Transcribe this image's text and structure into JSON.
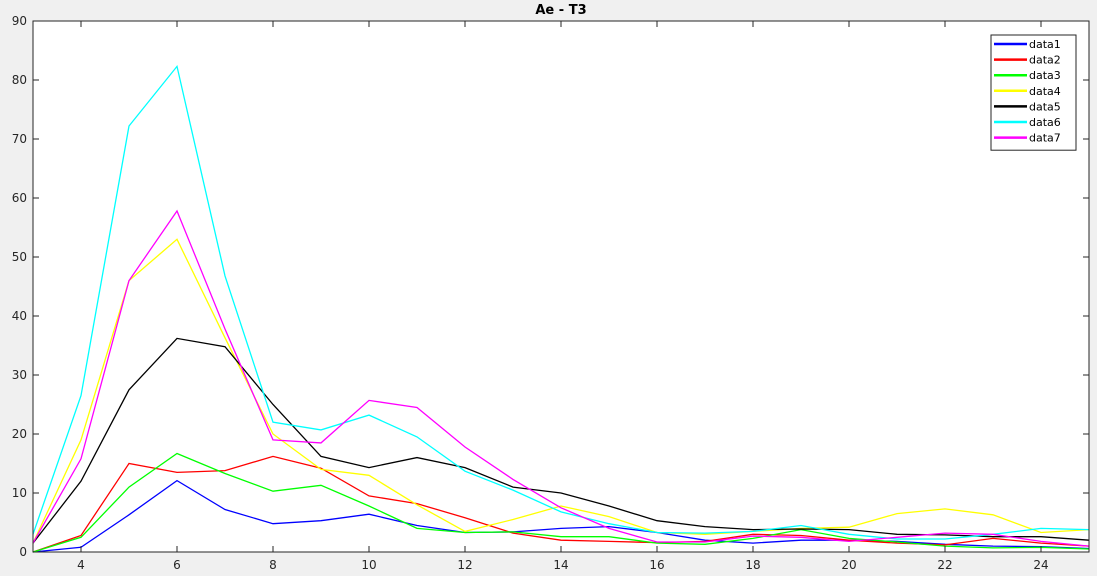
{
  "chart_data": {
    "type": "line",
    "title": "Ae - T3",
    "xlabel": "",
    "ylabel": "",
    "xlim": [
      3,
      25
    ],
    "ylim": [
      0,
      90
    ],
    "xticks": [
      4,
      6,
      8,
      10,
      12,
      14,
      16,
      18,
      20,
      22,
      24
    ],
    "yticks": [
      0,
      10,
      20,
      30,
      40,
      50,
      60,
      70,
      80,
      90
    ],
    "grid": false,
    "legend_position": "top-right",
    "x": [
      3,
      4,
      5,
      6,
      7,
      8,
      9,
      10,
      11,
      12,
      13,
      14,
      15,
      16,
      17,
      18,
      19,
      20,
      21,
      22,
      23,
      24,
      25
    ],
    "series": [
      {
        "name": "data1",
        "color": "#0000ff",
        "values": [
          0,
          0.8,
          6.3,
          12.1,
          7.2,
          4.8,
          5.3,
          6.4,
          4.5,
          3.3,
          3.4,
          4.0,
          4.3,
          3.3,
          2.0,
          1.5,
          2.0,
          2.0,
          1.8,
          1.3,
          1.0,
          0.9,
          0.6
        ]
      },
      {
        "name": "data2",
        "color": "#ff0000",
        "values": [
          0,
          2.8,
          15.0,
          13.5,
          13.8,
          16.2,
          14.2,
          9.5,
          8.2,
          5.8,
          3.2,
          2.0,
          1.8,
          1.6,
          1.8,
          3.0,
          2.8,
          2.0,
          1.5,
          1.2,
          2.3,
          1.5,
          1.0
        ]
      },
      {
        "name": "data3",
        "color": "#00ff00",
        "values": [
          0,
          2.5,
          11.0,
          16.7,
          13.3,
          10.3,
          11.3,
          7.8,
          4.0,
          3.3,
          3.4,
          2.6,
          2.6,
          1.5,
          1.3,
          2.3,
          3.8,
          2.3,
          1.7,
          1.0,
          0.7,
          0.8,
          0.5
        ]
      },
      {
        "name": "data4",
        "color": "#ffff00",
        "values": [
          1.5,
          19.0,
          46.0,
          53.0,
          36.3,
          20.0,
          14.0,
          13.0,
          8.0,
          3.5,
          5.5,
          7.8,
          6.0,
          3.3,
          3.0,
          3.5,
          4.0,
          4.2,
          6.5,
          7.3,
          6.3,
          3.3,
          3.8
        ]
      },
      {
        "name": "data5",
        "color": "#000000",
        "values": [
          1.5,
          12.0,
          27.5,
          36.2,
          34.8,
          25.0,
          16.2,
          14.3,
          16.0,
          14.3,
          11.0,
          10.0,
          7.8,
          5.3,
          4.3,
          3.8,
          3.9,
          3.8,
          3.0,
          2.9,
          2.6,
          2.6,
          2.0
        ]
      },
      {
        "name": "data6",
        "color": "#00ffff",
        "values": [
          3.0,
          26.5,
          72.2,
          82.3,
          46.8,
          22.0,
          20.7,
          23.2,
          19.5,
          13.7,
          10.5,
          6.8,
          4.8,
          3.3,
          3.2,
          3.5,
          4.5,
          3.0,
          2.2,
          2.2,
          3.0,
          4.0,
          3.8
        ]
      },
      {
        "name": "data7",
        "color": "#ff00ff",
        "values": [
          1.5,
          15.8,
          46.0,
          57.8,
          37.8,
          19.0,
          18.5,
          25.7,
          24.5,
          17.8,
          12.3,
          7.5,
          4.0,
          1.7,
          1.7,
          2.7,
          2.5,
          1.8,
          2.5,
          3.2,
          3.0,
          1.8,
          1.0
        ]
      }
    ]
  }
}
